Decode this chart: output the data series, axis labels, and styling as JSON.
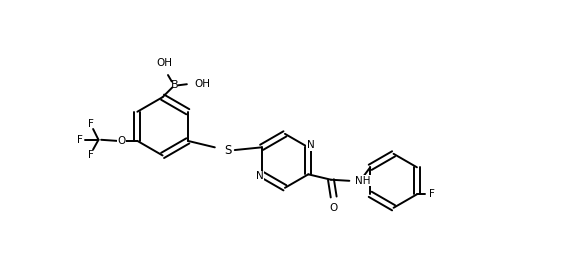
{
  "bg_color": "#ffffff",
  "line_color": "#000000",
  "lw": 1.4,
  "fs": 7.5,
  "figsize": [
    5.68,
    2.58
  ],
  "dpi": 100,
  "xlim": [
    0,
    10.5
  ],
  "ylim": [
    0,
    4.6
  ]
}
